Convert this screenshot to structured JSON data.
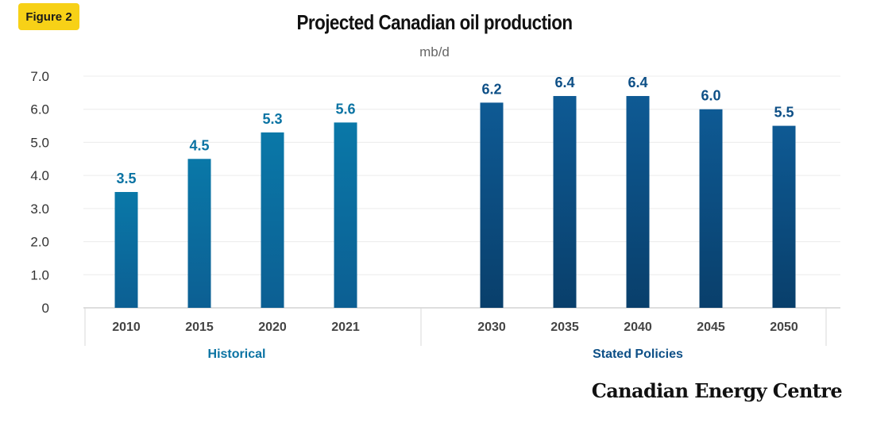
{
  "badge": "Figure 2",
  "title": "Projected Canadian oil production",
  "unit": "mb/d",
  "brand": "Canadian Energy Centre",
  "colors": {
    "historical": "#0a73a3",
    "projection": "#0d4f86",
    "badge": "#f7d117"
  },
  "chart_data": {
    "type": "bar",
    "title": "Projected Canadian oil production",
    "ylabel": "mb/d",
    "ylim": [
      0,
      7
    ],
    "yticks": [
      "0",
      "1.0",
      "2.0",
      "3.0",
      "4.0",
      "5.0",
      "6.0",
      "7.0"
    ],
    "grid": true,
    "groups": [
      {
        "name": "Historical",
        "categories": [
          "2010",
          "2015",
          "2020",
          "2021"
        ],
        "values": [
          3.5,
          4.5,
          5.3,
          5.6
        ],
        "labels": [
          "3.5",
          "4.5",
          "5.3",
          "5.6"
        ]
      },
      {
        "name": "Stated Policies",
        "categories": [
          "2030",
          "2035",
          "2040",
          "2045",
          "2050"
        ],
        "values": [
          6.2,
          6.4,
          6.4,
          6.0,
          5.5
        ],
        "labels": [
          "6.2",
          "6.4",
          "6.4",
          "6.0",
          "5.5"
        ]
      }
    ]
  }
}
